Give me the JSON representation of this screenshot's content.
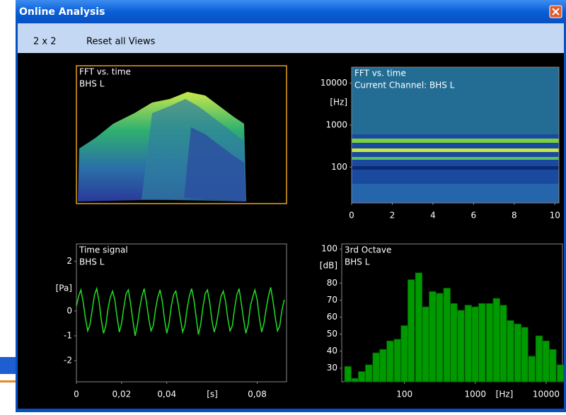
{
  "window": {
    "title": "Online Analysis",
    "menu": [
      "2 x 2",
      "Reset all Views"
    ]
  },
  "chart_data": [
    {
      "type": "surface",
      "title": "FFT vs. time",
      "subtitle": "BHS L"
    },
    {
      "type": "spectrogram",
      "title": "FFT vs. time",
      "subtitle": "Current Channel: BHS L",
      "ylabel": "[Hz]",
      "yscale": "log",
      "ylim": [
        14,
        24000
      ],
      "yticks": [
        10000,
        1000,
        100
      ],
      "xlim": [
        0,
        10.2
      ],
      "xticks": [
        0,
        2,
        4,
        6,
        8,
        10
      ]
    },
    {
      "type": "line",
      "title": "Time signal",
      "subtitle": "BHS L",
      "ylabel": "[Pa]",
      "xlabel": "[s]",
      "color": "#22dd22",
      "xlim": [
        0,
        0.093
      ],
      "xticks": [
        0,
        {
          "value": 0.02,
          "label": "0,02"
        },
        {
          "value": 0.04,
          "label": "0,04"
        },
        {
          "value": 0.08,
          "label": "0,08"
        }
      ],
      "ylim": [
        -2.85,
        2.7
      ],
      "yticks": [
        2,
        0,
        -1,
        -2
      ],
      "x": [
        0,
        0.001,
        0.002,
        0.003,
        0.004,
        0.005,
        0.006,
        0.007,
        0.008,
        0.009,
        0.01,
        0.011,
        0.012,
        0.013,
        0.014,
        0.015,
        0.016,
        0.017,
        0.018,
        0.019,
        0.02,
        0.021,
        0.022,
        0.023,
        0.024,
        0.025,
        0.026,
        0.027,
        0.028,
        0.029,
        0.03,
        0.031,
        0.032,
        0.033,
        0.034,
        0.035,
        0.036,
        0.037,
        0.038,
        0.039,
        0.04,
        0.041,
        0.042,
        0.043,
        0.044,
        0.045,
        0.046,
        0.047,
        0.048,
        0.049,
        0.05,
        0.051,
        0.052,
        0.053,
        0.054,
        0.055,
        0.056,
        0.057,
        0.058,
        0.059,
        0.06,
        0.061,
        0.062,
        0.063,
        0.064,
        0.065,
        0.066,
        0.067,
        0.068,
        0.069,
        0.07,
        0.071,
        0.072,
        0.073,
        0.074,
        0.075,
        0.076,
        0.077,
        0.078,
        0.079,
        0.08,
        0.081,
        0.082,
        0.083,
        0.084,
        0.085,
        0.086,
        0.087,
        0.088,
        0.089,
        0.09,
        0.091,
        0.092
      ],
      "values": [
        0.2,
        0.6,
        0.85,
        0.35,
        -0.3,
        -0.8,
        -0.55,
        0.05,
        0.65,
        0.9,
        0.4,
        -0.35,
        -0.9,
        -0.6,
        0.1,
        0.55,
        0.8,
        0.45,
        -0.25,
        -0.85,
        -0.5,
        0.15,
        0.7,
        0.85,
        0.3,
        -0.4,
        -1.0,
        -0.55,
        0.1,
        0.6,
        0.9,
        0.35,
        -0.3,
        -0.8,
        -0.6,
        0.05,
        0.55,
        0.85,
        0.4,
        -0.35,
        -0.9,
        -0.5,
        0.2,
        0.65,
        0.8,
        0.3,
        -0.3,
        -0.85,
        -0.6,
        0.1,
        0.6,
        0.9,
        0.45,
        -0.25,
        -0.95,
        -0.55,
        0.15,
        0.7,
        0.85,
        0.35,
        -0.4,
        -0.85,
        -0.5,
        0.05,
        0.6,
        0.8,
        0.4,
        -0.3,
        -0.8,
        -0.6,
        0.1,
        0.65,
        0.9,
        0.3,
        -0.35,
        -0.9,
        -0.55,
        0.2,
        0.55,
        0.85,
        0.45,
        -0.3,
        -0.85,
        -0.5,
        0.1,
        0.6,
        0.95,
        0.4,
        -0.25,
        -0.8,
        -0.6,
        0.05,
        0.45
      ]
    },
    {
      "type": "bar",
      "title": "3rd Octave",
      "subtitle": "BHS L",
      "ylabel": "[dB]",
      "xlabel": "[Hz]",
      "color": "#009a00",
      "xscale": "log",
      "xlim": [
        13,
        17000
      ],
      "xticks": [
        100,
        1000,
        10000
      ],
      "ylim": [
        22,
        103
      ],
      "yticks": [
        100,
        80,
        70,
        60,
        50,
        40,
        30
      ],
      "x": [
        16,
        20,
        25,
        31.5,
        40,
        50,
        63,
        80,
        100,
        125,
        160,
        200,
        250,
        315,
        400,
        500,
        630,
        800,
        1000,
        1250,
        1600,
        2000,
        2500,
        3150,
        4000,
        5000,
        6300,
        8000,
        10000,
        12500,
        16000
      ],
      "values": [
        31,
        24,
        28,
        32,
        39,
        41,
        46,
        47,
        55,
        82,
        86,
        66,
        75,
        74,
        77,
        68,
        64,
        67,
        66,
        68,
        68,
        71,
        67,
        58,
        56,
        54,
        37,
        49,
        46,
        41,
        32
      ]
    }
  ]
}
